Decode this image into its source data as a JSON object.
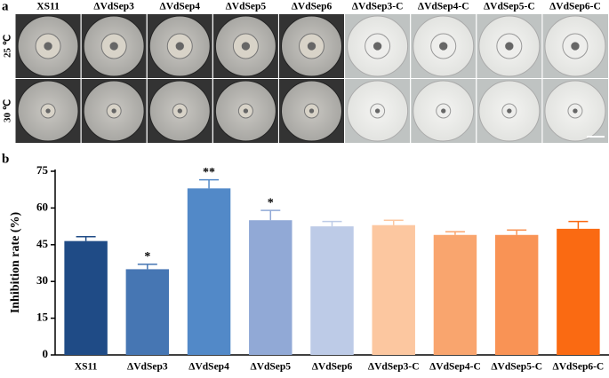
{
  "panel_a": {
    "panel_label": "a",
    "columns": [
      "XS11",
      "ΔVdSep3",
      "ΔVdSep4",
      "ΔVdSep5",
      "ΔVdSep6",
      "ΔVdSep3-C",
      "ΔVdSep4-C",
      "ΔVdSep5-C",
      "ΔVdSep6-C"
    ],
    "rows": [
      "25 ℃",
      "30 ℃"
    ]
  },
  "chart_data": {
    "type": "bar",
    "panel_label": "b",
    "y_label": "Inhibition rate (%)",
    "categories": [
      "XS11",
      "ΔVdSep3",
      "ΔVdSep4",
      "ΔVdSep5",
      "ΔVdSep6",
      "ΔVdSep3-C",
      "ΔVdSep4-C",
      "ΔVdSep5-C",
      "ΔVdSep6-C"
    ],
    "values": [
      46.5,
      35,
      68,
      55,
      52.5,
      53,
      49,
      49,
      51.5
    ],
    "errors": [
      1.8,
      2,
      3.5,
      4,
      2,
      2,
      1.3,
      2,
      3
    ],
    "significance": [
      null,
      "*",
      "**",
      "*",
      null,
      null,
      null,
      null,
      null
    ],
    "colors": [
      "#1f4b86",
      "#4676b3",
      "#5289c8",
      "#91a9d6",
      "#bdcbe7",
      "#fcc7a0",
      "#f9a56e",
      "#f99355",
      "#fa6a12"
    ],
    "ylim": [
      0,
      75
    ],
    "yticks": [
      0,
      15,
      30,
      45,
      60,
      75
    ]
  }
}
